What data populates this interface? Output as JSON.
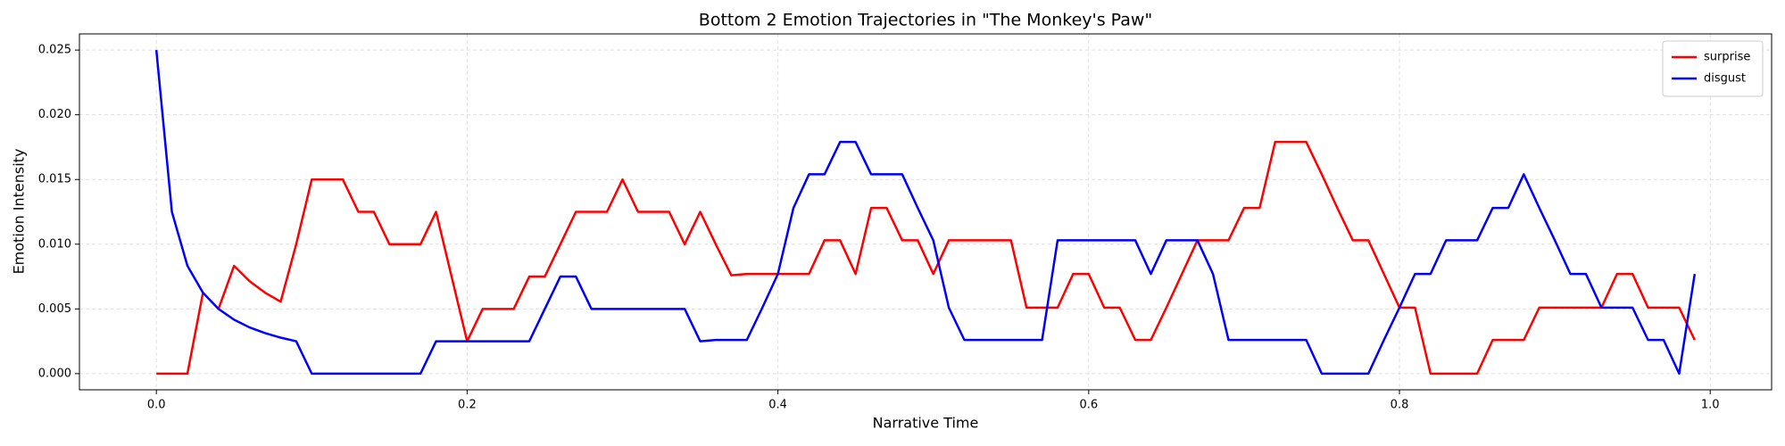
{
  "chart_data": {
    "type": "line",
    "title": "Bottom 2 Emotion Trajectories in \"The Monkey's Paw\"",
    "xlabel": "Narrative Time",
    "ylabel": "Emotion Intensity",
    "x": [
      0,
      0.01,
      0.02,
      0.03,
      0.04,
      0.05,
      0.06,
      0.07,
      0.08,
      0.09,
      0.1,
      0.11,
      0.12,
      0.13,
      0.14,
      0.15,
      0.16,
      0.17,
      0.18,
      0.19,
      0.2,
      0.21,
      0.22,
      0.23,
      0.24,
      0.25,
      0.26,
      0.27,
      0.28,
      0.29,
      0.3,
      0.31,
      0.32,
      0.33,
      0.34,
      0.35,
      0.36,
      0.37,
      0.38,
      0.39,
      0.4,
      0.41,
      0.42,
      0.43,
      0.44,
      0.45,
      0.46,
      0.47,
      0.48,
      0.49,
      0.5,
      0.51,
      0.52,
      0.53,
      0.54,
      0.55,
      0.56,
      0.57,
      0.58,
      0.59,
      0.6,
      0.61,
      0.62,
      0.63,
      0.64,
      0.65,
      0.66,
      0.67,
      0.68,
      0.69,
      0.7,
      0.71,
      0.72,
      0.73,
      0.74,
      0.75,
      0.76,
      0.77,
      0.78,
      0.79,
      0.8,
      0.81,
      0.82,
      0.83,
      0.84,
      0.85,
      0.86,
      0.87,
      0.88,
      0.89,
      0.9,
      0.91,
      0.92,
      0.93,
      0.94,
      0.95,
      0.96,
      0.97,
      0.98,
      0.99
    ],
    "series": [
      {
        "name": "surprise",
        "color": "#ff0000",
        "values": [
          0,
          0,
          0,
          0.00625,
          0.005,
          0.00833,
          0.00714,
          0.00625,
          0.00556,
          0.01,
          0.015,
          0.015,
          0.015,
          0.0125,
          0.0125,
          0.01,
          0.01,
          0.01,
          0.0125,
          0.0075,
          0.0025,
          0.005,
          0.005,
          0.005,
          0.0075,
          0.0075,
          0.01,
          0.0125,
          0.0125,
          0.0125,
          0.015,
          0.0125,
          0.0125,
          0.0125,
          0.01,
          0.0125,
          0.01,
          0.0076,
          0.0077,
          0.0077,
          0.0077,
          0.0077,
          0.0077,
          0.0103,
          0.0103,
          0.0077,
          0.0128,
          0.0128,
          0.0103,
          0.0103,
          0.0077,
          0.0103,
          0.0103,
          0.0103,
          0.0103,
          0.0103,
          0.0051,
          0.0051,
          0.0051,
          0.0077,
          0.0077,
          0.0051,
          0.0051,
          0.0026,
          0.0026,
          0.0051,
          0.0077,
          0.0103,
          0.0103,
          0.0103,
          0.0128,
          0.0128,
          0.0179,
          0.0179,
          0.0179,
          0.0154,
          0.0128,
          0.0103,
          0.0103,
          0.0077,
          0.0051,
          0.0051,
          0,
          0,
          0,
          0,
          0.0026,
          0.0026,
          0.0026,
          0.0051,
          0.0051,
          0.0051,
          0.0051,
          0.0051,
          0.0077,
          0.0077,
          0.0051,
          0.0051,
          0.0051,
          0.0026
        ]
      },
      {
        "name": "disgust",
        "color": "#0000ff",
        "values": [
          0.025,
          0.0125,
          0.00833,
          0.00625,
          0.005,
          0.00417,
          0.00357,
          0.00313,
          0.00278,
          0.0025,
          0,
          0,
          0,
          0,
          0,
          0,
          0,
          0,
          0.0025,
          0.0025,
          0.0025,
          0.0025,
          0.0025,
          0.0025,
          0.0025,
          0.005,
          0.0075,
          0.0075,
          0.005,
          0.005,
          0.005,
          0.005,
          0.005,
          0.005,
          0.005,
          0.0025,
          0.0026,
          0.0026,
          0.0026,
          0.0051,
          0.0077,
          0.0128,
          0.0154,
          0.0154,
          0.0179,
          0.0179,
          0.0154,
          0.0154,
          0.0154,
          0.0128,
          0.0103,
          0.0051,
          0.0026,
          0.0026,
          0.0026,
          0.0026,
          0.0026,
          0.0026,
          0.0103,
          0.0103,
          0.0103,
          0.0103,
          0.0103,
          0.0103,
          0.0077,
          0.0103,
          0.0103,
          0.0103,
          0.0077,
          0.0026,
          0.0026,
          0.0026,
          0.0026,
          0.0026,
          0.0026,
          0,
          0,
          0,
          0,
          0.0026,
          0.0051,
          0.0077,
          0.0077,
          0.0103,
          0.0103,
          0.0103,
          0.0128,
          0.0128,
          0.0154,
          0.0128,
          0.0103,
          0.0077,
          0.0077,
          0.0051,
          0.0051,
          0.0051,
          0.0026,
          0.0026,
          0,
          0.0077
        ]
      }
    ],
    "xlim": [
      -0.0495,
      1.0395
    ],
    "ylim": [
      -0.00125,
      0.02625
    ],
    "xticks": [
      {
        "value": 0,
        "label": "0.0"
      },
      {
        "value": 0.2,
        "label": "0.2"
      },
      {
        "value": 0.4,
        "label": "0.4"
      },
      {
        "value": 0.6,
        "label": "0.6"
      },
      {
        "value": 0.8,
        "label": "0.8"
      },
      {
        "value": 1,
        "label": "1.0"
      }
    ],
    "yticks": [
      {
        "value": 0,
        "label": "0.000"
      },
      {
        "value": 0.005,
        "label": "0.005"
      },
      {
        "value": 0.01,
        "label": "0.010"
      },
      {
        "value": 0.015,
        "label": "0.015"
      },
      {
        "value": 0.02,
        "label": "0.020"
      },
      {
        "value": 0.025,
        "label": "0.025"
      }
    ],
    "grid": true,
    "legend": "upper right"
  }
}
